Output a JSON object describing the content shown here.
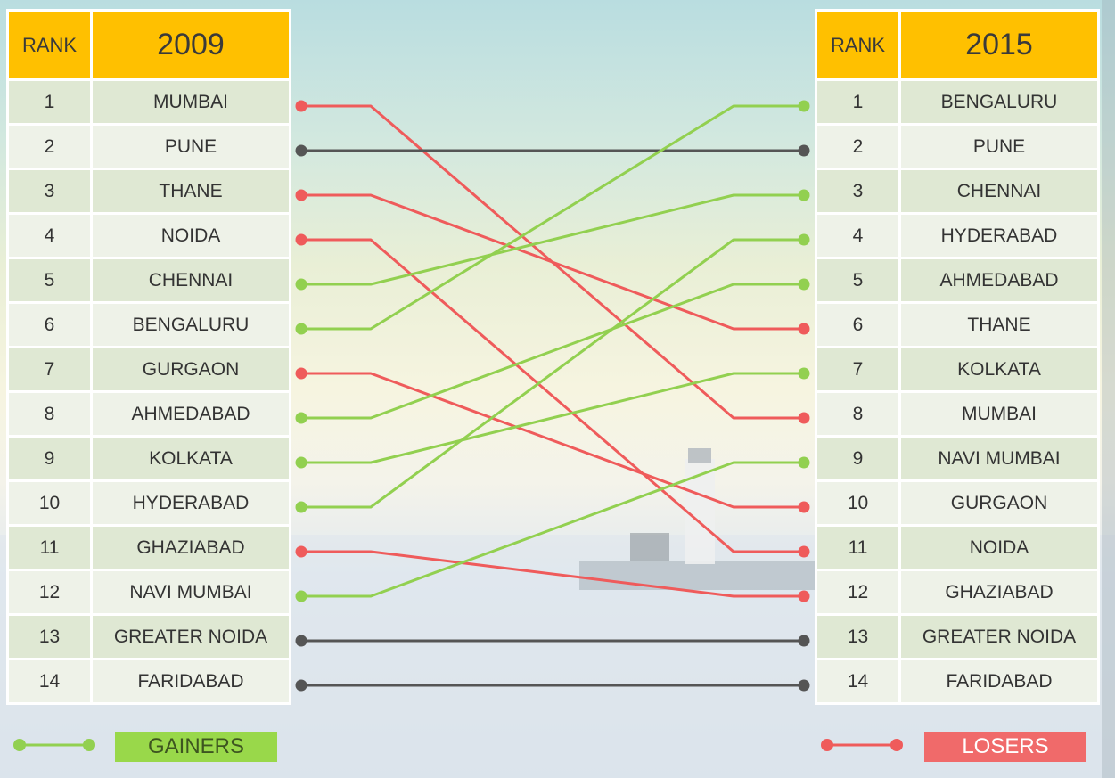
{
  "chart_data": {
    "type": "slope",
    "left_table": {
      "rank_header": "RANK",
      "year": "2009"
    },
    "right_table": {
      "rank_header": "RANK",
      "year": "2015"
    },
    "ranks_2009": [
      {
        "rank": "1",
        "city": "MUMBAI"
      },
      {
        "rank": "2",
        "city": "PUNE"
      },
      {
        "rank": "3",
        "city": "THANE"
      },
      {
        "rank": "4",
        "city": "NOIDA"
      },
      {
        "rank": "5",
        "city": "CHENNAI"
      },
      {
        "rank": "6",
        "city": "BENGALURU"
      },
      {
        "rank": "7",
        "city": "GURGAON"
      },
      {
        "rank": "8",
        "city": "AHMEDABAD"
      },
      {
        "rank": "9",
        "city": "KOLKATA"
      },
      {
        "rank": "10",
        "city": "HYDERABAD"
      },
      {
        "rank": "11",
        "city": "GHAZIABAD"
      },
      {
        "rank": "12",
        "city": "NAVI MUMBAI"
      },
      {
        "rank": "13",
        "city": "GREATER NOIDA"
      },
      {
        "rank": "14",
        "city": "FARIDABAD"
      }
    ],
    "ranks_2015": [
      {
        "rank": "1",
        "city": "BENGALURU"
      },
      {
        "rank": "2",
        "city": "PUNE"
      },
      {
        "rank": "3",
        "city": "CHENNAI"
      },
      {
        "rank": "4",
        "city": "HYDERABAD"
      },
      {
        "rank": "5",
        "city": "AHMEDABAD"
      },
      {
        "rank": "6",
        "city": "THANE"
      },
      {
        "rank": "7",
        "city": "KOLKATA"
      },
      {
        "rank": "8",
        "city": "MUMBAI"
      },
      {
        "rank": "9",
        "city": "NAVI MUMBAI"
      },
      {
        "rank": "10",
        "city": "GURGAON"
      },
      {
        "rank": "11",
        "city": "NOIDA"
      },
      {
        "rank": "12",
        "city": "GHAZIABAD"
      },
      {
        "rank": "13",
        "city": "GREATER NOIDA"
      },
      {
        "rank": "14",
        "city": "FARIDABAD"
      }
    ],
    "legend": [
      {
        "label": "GAINERS",
        "color": "#92d050"
      },
      {
        "label": "LOSERS",
        "color": "#ef5b5b"
      }
    ],
    "colors": {
      "unchanged": "#555555",
      "header": "#ffc000"
    }
  }
}
